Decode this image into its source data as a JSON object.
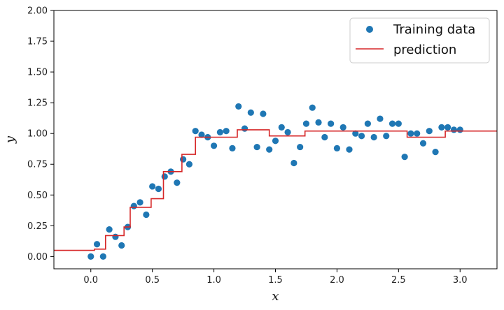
{
  "chart_data": {
    "type": "scatter",
    "xlabel": "x",
    "ylabel": "y",
    "xlim": [
      -0.3,
      3.3
    ],
    "ylim": [
      -0.1,
      2.0
    ],
    "xticks": [
      "0.0",
      "0.5",
      "1.0",
      "1.5",
      "2.0",
      "2.5",
      "3.0"
    ],
    "yticks": [
      "0.00",
      "0.25",
      "0.50",
      "0.75",
      "1.00",
      "1.25",
      "1.50",
      "1.75",
      "2.00"
    ],
    "grid": false,
    "legend_position": "top-right",
    "colors": {
      "points": "#1f77b4",
      "prediction": "#d62728"
    },
    "series": [
      {
        "name": "Training data",
        "type": "scatter",
        "x": [
          0.0,
          0.05,
          0.1,
          0.15,
          0.2,
          0.25,
          0.3,
          0.35,
          0.4,
          0.45,
          0.5,
          0.55,
          0.6,
          0.65,
          0.7,
          0.75,
          0.8,
          0.85,
          0.9,
          0.95,
          1.0,
          1.05,
          1.1,
          1.15,
          1.2,
          1.25,
          1.3,
          1.35,
          1.4,
          1.45,
          1.5,
          1.55,
          1.6,
          1.65,
          1.7,
          1.75,
          1.8,
          1.85,
          1.9,
          1.95,
          2.0,
          2.05,
          2.1,
          2.15,
          2.2,
          2.25,
          2.3,
          2.35,
          2.4,
          2.45,
          2.5,
          2.55,
          2.6,
          2.65,
          2.7,
          2.75,
          2.8,
          2.85,
          2.9,
          2.95,
          3.0
        ],
        "y": [
          0.0,
          0.1,
          0.0,
          0.22,
          0.16,
          0.09,
          0.24,
          0.41,
          0.44,
          0.34,
          0.57,
          0.55,
          0.65,
          0.69,
          0.6,
          0.79,
          0.75,
          1.02,
          0.99,
          0.97,
          0.9,
          1.01,
          1.02,
          0.88,
          1.22,
          1.04,
          1.17,
          0.89,
          1.16,
          0.87,
          0.94,
          1.05,
          1.01,
          0.76,
          0.89,
          1.08,
          1.21,
          1.09,
          0.97,
          1.08,
          0.88,
          1.05,
          0.87,
          1.0,
          0.98,
          1.08,
          0.97,
          1.12,
          0.98,
          1.08,
          1.08,
          0.81,
          1.0,
          1.0,
          0.92,
          1.02,
          0.85,
          1.05,
          1.05,
          1.03,
          1.03
        ]
      },
      {
        "name": "prediction",
        "type": "step",
        "x": [
          -0.3,
          0.03,
          0.03,
          0.12,
          0.12,
          0.2,
          0.2,
          0.27,
          0.27,
          0.32,
          0.32,
          0.49,
          0.49,
          0.59,
          0.59,
          0.74,
          0.74,
          0.85,
          0.85,
          1.19,
          1.19,
          1.45,
          1.45,
          1.74,
          1.74,
          2.0,
          2.0,
          2.28,
          2.28,
          2.57,
          2.57,
          2.88,
          2.88,
          3.3
        ],
        "y": [
          0.05,
          0.05,
          0.06,
          0.06,
          0.17,
          0.17,
          0.17,
          0.17,
          0.24,
          0.24,
          0.4,
          0.4,
          0.47,
          0.47,
          0.69,
          0.69,
          0.83,
          0.83,
          0.97,
          0.97,
          1.03,
          1.03,
          0.98,
          0.98,
          1.02,
          1.02,
          1.02,
          1.02,
          1.02,
          1.02,
          0.97,
          0.97,
          1.02,
          1.02
        ]
      }
    ]
  }
}
